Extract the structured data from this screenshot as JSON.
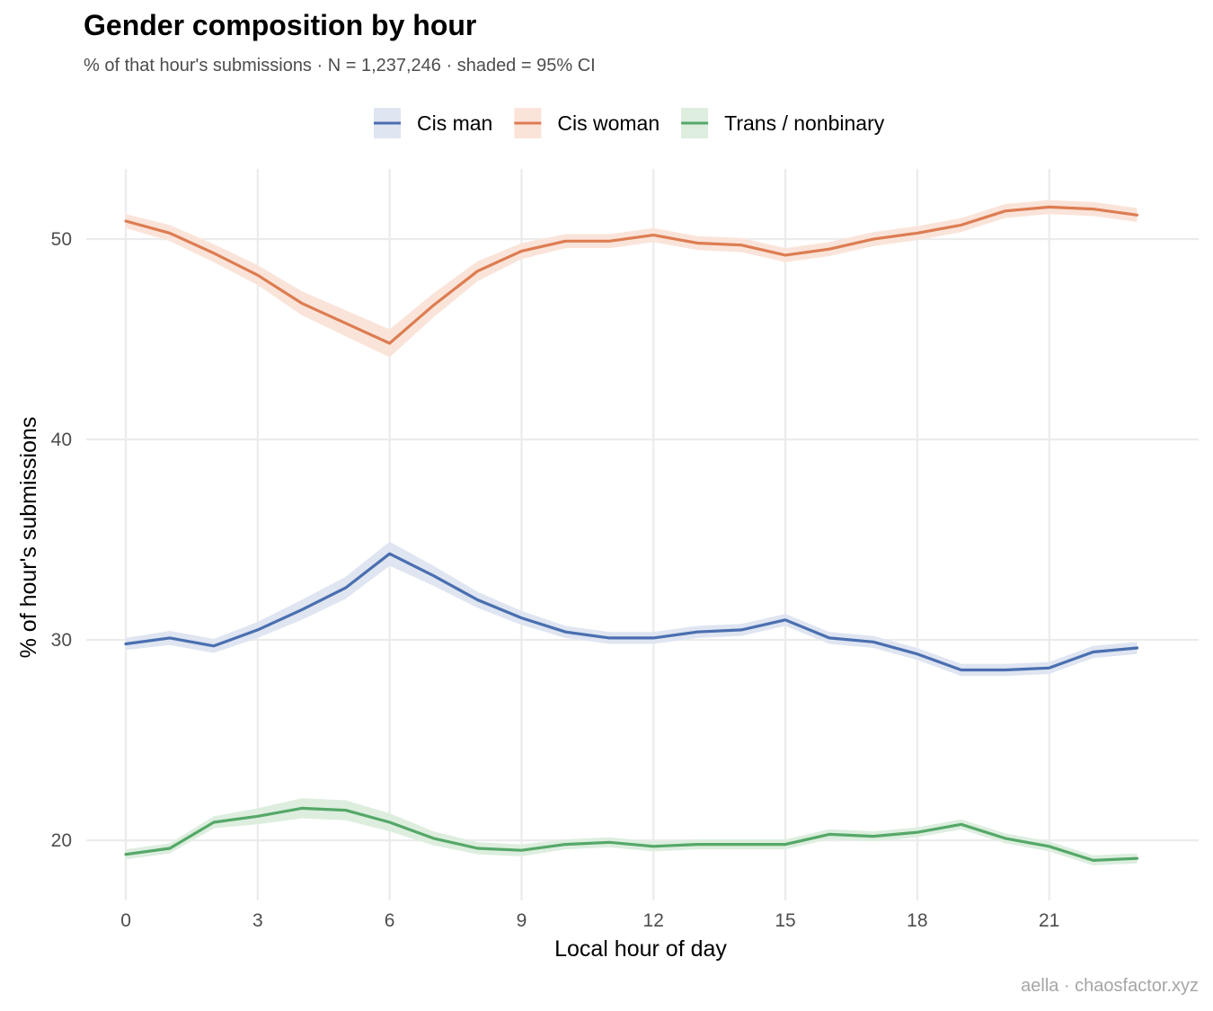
{
  "chart_data": {
    "type": "line",
    "title": "Gender composition by hour",
    "subtitle": "% of that hour's submissions · N = 1,237,246 · shaded = 95% CI",
    "xlabel": "Local hour of day",
    "ylabel": "% of hour's submissions",
    "caption": "aella · chaosfactor.xyz",
    "xlim": [
      -0.9,
      24.4
    ],
    "ylim": [
      17.0,
      53.5
    ],
    "x_ticks": [
      0,
      3,
      6,
      9,
      12,
      15,
      18,
      21
    ],
    "y_ticks": [
      20,
      30,
      40,
      50
    ],
    "grid": true,
    "legend_position": "top",
    "x": [
      0,
      1,
      2,
      3,
      4,
      5,
      6,
      7,
      8,
      9,
      10,
      11,
      12,
      13,
      14,
      15,
      16,
      17,
      18,
      19,
      20,
      21,
      22,
      23
    ],
    "series": [
      {
        "name": "Cis man",
        "color": "#4a6fb0",
        "fill": "#dfe5f1",
        "values": [
          29.8,
          30.1,
          29.7,
          30.5,
          31.5,
          32.6,
          34.3,
          33.2,
          32.0,
          31.1,
          30.4,
          30.1,
          30.1,
          30.4,
          30.5,
          31.0,
          30.1,
          29.9,
          29.3,
          28.5,
          28.5,
          28.6,
          29.4,
          29.6
        ],
        "ci": [
          0.3,
          0.35,
          0.35,
          0.4,
          0.5,
          0.55,
          0.6,
          0.5,
          0.4,
          0.35,
          0.3,
          0.3,
          0.3,
          0.3,
          0.3,
          0.3,
          0.3,
          0.3,
          0.3,
          0.3,
          0.3,
          0.3,
          0.3,
          0.3
        ]
      },
      {
        "name": "Cis woman",
        "color": "#dd7d52",
        "fill": "#fae4da",
        "values": [
          50.9,
          50.3,
          49.3,
          48.2,
          46.8,
          45.8,
          44.8,
          46.7,
          48.4,
          49.4,
          49.9,
          49.9,
          50.2,
          49.8,
          49.7,
          49.2,
          49.5,
          50.0,
          50.3,
          50.7,
          51.4,
          51.6,
          51.5,
          51.2
        ],
        "ci": [
          0.35,
          0.4,
          0.45,
          0.5,
          0.6,
          0.65,
          0.7,
          0.6,
          0.5,
          0.4,
          0.35,
          0.35,
          0.35,
          0.35,
          0.35,
          0.35,
          0.35,
          0.35,
          0.35,
          0.35,
          0.35,
          0.35,
          0.35,
          0.35
        ]
      },
      {
        "name": "Trans / nonbinary",
        "color": "#55a868",
        "fill": "#ddeedf",
        "values": [
          19.3,
          19.6,
          20.9,
          21.2,
          21.6,
          21.5,
          20.9,
          20.1,
          19.6,
          19.5,
          19.8,
          19.9,
          19.7,
          19.8,
          19.8,
          19.8,
          20.3,
          20.2,
          20.4,
          20.8,
          20.1,
          19.7,
          19.0,
          19.1
        ],
        "ci": [
          0.25,
          0.25,
          0.3,
          0.4,
          0.5,
          0.5,
          0.45,
          0.35,
          0.3,
          0.3,
          0.25,
          0.25,
          0.25,
          0.25,
          0.25,
          0.25,
          0.25,
          0.25,
          0.25,
          0.25,
          0.25,
          0.25,
          0.25,
          0.25
        ]
      }
    ]
  }
}
